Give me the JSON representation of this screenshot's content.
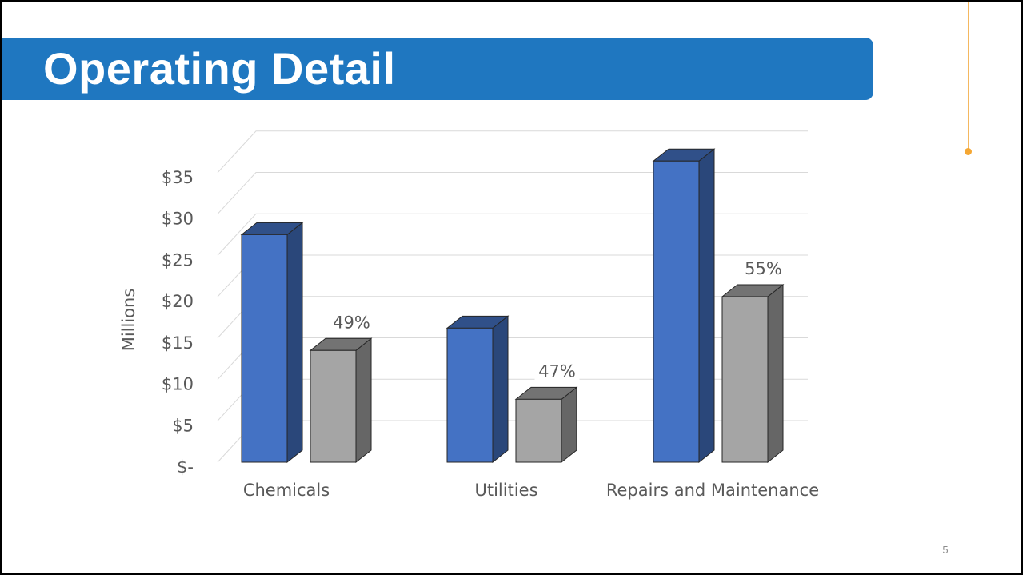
{
  "slide": {
    "title": "Operating Detail",
    "page_number": "5"
  },
  "colors": {
    "title_band": "#1f77c0",
    "blue_series": "#4472c4",
    "gray_series": "#a5a5a5",
    "accent": "#f5a733"
  },
  "chart_data": {
    "type": "bar",
    "ylabel": "Millions",
    "categories": [
      "Chemicals",
      "Utilities",
      "Repairs and Maintenance"
    ],
    "yticks": [
      {
        "value": 0,
        "label": "$-"
      },
      {
        "value": 5,
        "label": "$5"
      },
      {
        "value": 10,
        "label": "$10"
      },
      {
        "value": 15,
        "label": "$15"
      },
      {
        "value": 20,
        "label": "$20"
      },
      {
        "value": 25,
        "label": "$25"
      },
      {
        "value": 30,
        "label": "$30"
      },
      {
        "value": 35,
        "label": "$35"
      }
    ],
    "ylim": [
      0,
      38
    ],
    "grid": true,
    "series": [
      {
        "values": [
          27.5,
          16.2,
          36.4
        ],
        "color": "#4472c4"
      },
      {
        "values": [
          13.5,
          7.6,
          20.0
        ],
        "color": "#a5a5a5"
      }
    ],
    "data_labels": [
      "49%",
      "47%",
      "55%"
    ]
  }
}
